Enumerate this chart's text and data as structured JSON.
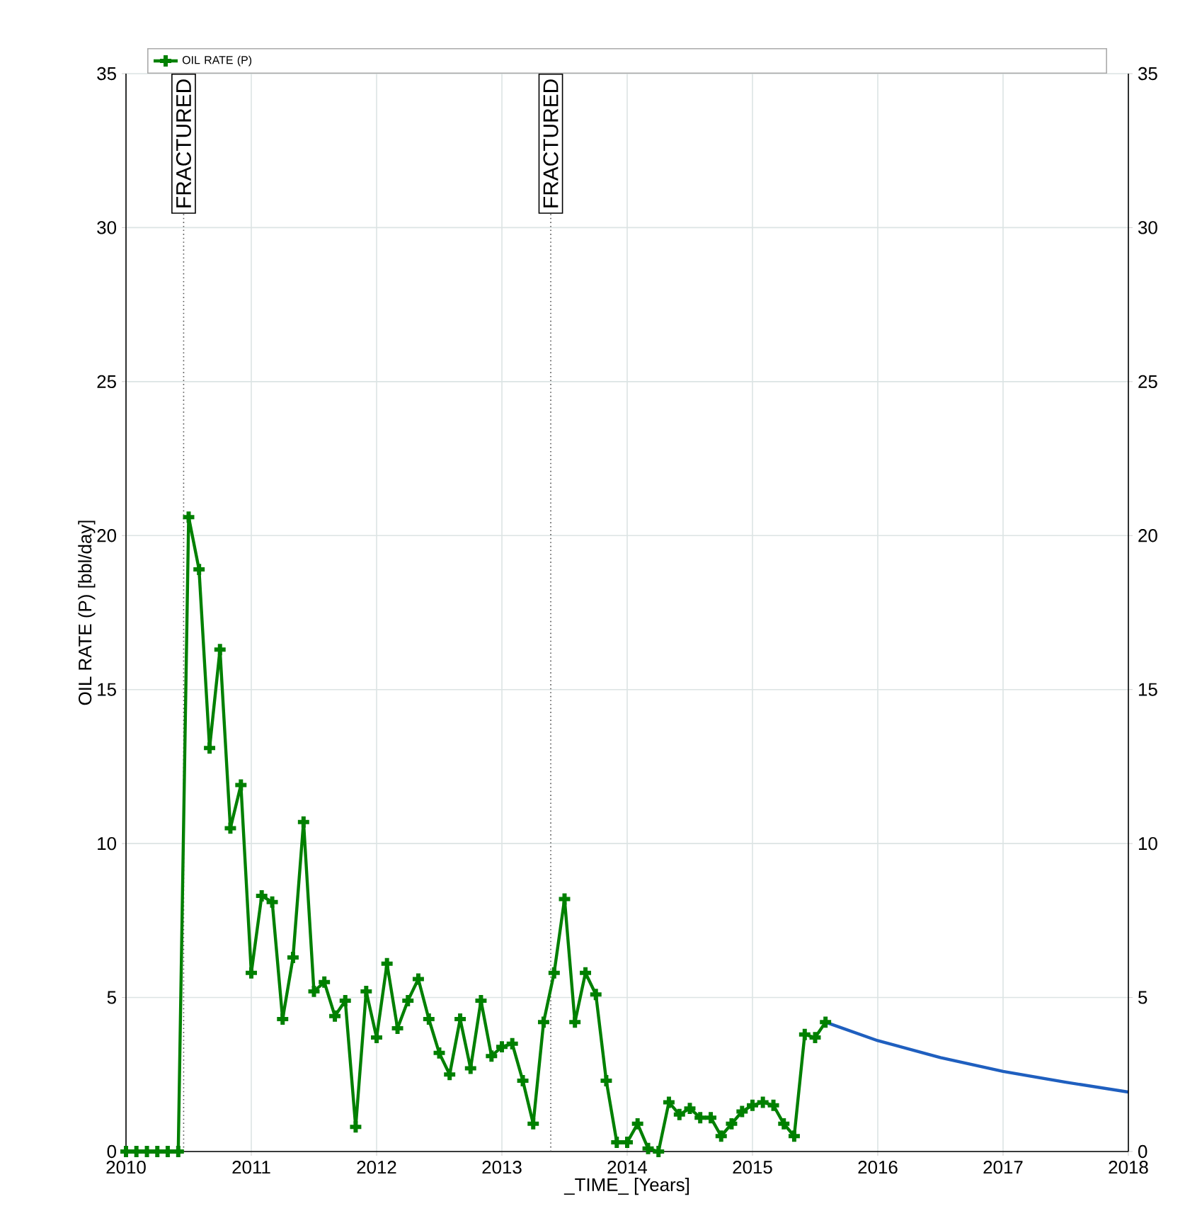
{
  "chart_data": {
    "type": "line",
    "xlabel": "_TIME_  [Years]",
    "ylabel": "OIL RATE (P) [bbl/day]",
    "xlim": [
      2010,
      2018
    ],
    "xticks": [
      2010,
      2011,
      2012,
      2013,
      2014,
      2015,
      2016,
      2017,
      2018
    ],
    "ylim": [
      0,
      35
    ],
    "yticks": [
      0,
      5,
      10,
      15,
      20,
      25,
      30,
      35
    ],
    "y2lim": [
      0,
      35
    ],
    "y2ticks": [
      0,
      5,
      10,
      15,
      20,
      25,
      30,
      35
    ],
    "grid": true,
    "legend": "top",
    "line_style": "solid",
    "ref_lines": [
      {
        "axis": "x",
        "value": 2010.46,
        "label": "FRACTURED",
        "line_style": "dotted",
        "color": "#555555"
      },
      {
        "axis": "x",
        "value": 2013.39,
        "label": "FRACTURED",
        "line_style": "dotted",
        "color": "#555555"
      }
    ],
    "series": [
      {
        "name": "OIL RATE (P)",
        "color": "#008000",
        "marker": "cross",
        "x": [
          2010.0,
          2010.083,
          2010.167,
          2010.25,
          2010.333,
          2010.417,
          2010.5,
          2010.583,
          2010.667,
          2010.75,
          2010.833,
          2010.917,
          2011.0,
          2011.083,
          2011.167,
          2011.25,
          2011.333,
          2011.417,
          2011.5,
          2011.583,
          2011.667,
          2011.75,
          2011.833,
          2011.917,
          2012.0,
          2012.083,
          2012.167,
          2012.25,
          2012.333,
          2012.417,
          2012.5,
          2012.583,
          2012.667,
          2012.75,
          2012.833,
          2012.917,
          2013.0,
          2013.083,
          2013.167,
          2013.25,
          2013.333,
          2013.417,
          2013.5,
          2013.583,
          2013.667,
          2013.75,
          2013.833,
          2013.917,
          2014.0,
          2014.083,
          2014.167,
          2014.25,
          2014.333,
          2014.417,
          2014.5,
          2014.583,
          2014.667,
          2014.75,
          2014.833,
          2014.917,
          2015.0,
          2015.083,
          2015.167,
          2015.25,
          2015.333,
          2015.417,
          2015.5,
          2015.583
        ],
        "values": [
          0,
          0,
          0,
          0,
          0,
          0,
          20.6,
          18.9,
          13.1,
          16.3,
          10.5,
          11.9,
          5.8,
          8.3,
          8.1,
          4.3,
          6.3,
          10.7,
          5.2,
          5.5,
          4.4,
          4.9,
          0.8,
          5.2,
          3.7,
          6.1,
          4.0,
          4.9,
          5.6,
          4.3,
          3.2,
          2.5,
          4.3,
          2.7,
          4.9,
          3.1,
          3.4,
          3.5,
          2.3,
          0.9,
          4.2,
          5.8,
          8.2,
          4.2,
          5.8,
          5.1,
          2.3,
          0.3,
          0.3,
          0.9,
          0.1,
          0.0,
          1.6,
          1.2,
          1.4,
          1.1,
          1.1,
          0.5,
          0.9,
          1.3,
          1.5,
          1.6,
          1.5,
          0.9,
          0.5,
          3.8,
          3.7,
          4.2
        ]
      },
      {
        "color": "#1f5fbf",
        "marker": "none",
        "x": [
          2015.583,
          2016,
          2016.5,
          2017,
          2017.5,
          2018
        ],
        "values": [
          4.2,
          3.6,
          3.05,
          2.6,
          2.25,
          1.93
        ]
      }
    ]
  }
}
